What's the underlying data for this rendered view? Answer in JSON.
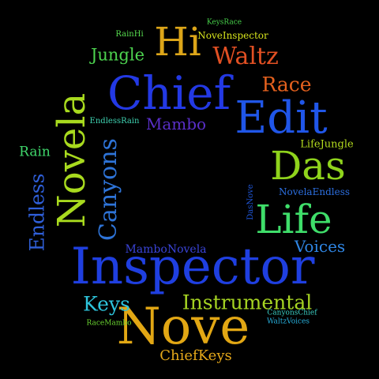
{
  "words": [
    {
      "text": "Inspector",
      "color": "#1f3fe0"
    },
    {
      "text": "Nove",
      "color": "#e2a714"
    },
    {
      "text": "Chief",
      "color": "#2339e4"
    },
    {
      "text": "Edit",
      "color": "#2056e8"
    },
    {
      "text": "Hi",
      "color": "#dca519"
    },
    {
      "text": "Das",
      "color": "#8fd31c"
    },
    {
      "text": "Life",
      "color": "#3fde6a"
    },
    {
      "text": "Novela",
      "color": "#a8da1e"
    },
    {
      "text": "Canyons",
      "color": "#2e74d8"
    },
    {
      "text": "Instrumental",
      "color": "#a6d422"
    },
    {
      "text": "Waltz",
      "color": "#e25023"
    },
    {
      "text": "Race",
      "color": "#e5611e"
    },
    {
      "text": "Endless",
      "color": "#2f5fd9"
    },
    {
      "text": "Keys",
      "color": "#2ec4db"
    },
    {
      "text": "Voices",
      "color": "#2f86e4"
    },
    {
      "text": "Jungle",
      "color": "#4dd34f"
    },
    {
      "text": "Mambo",
      "color": "#5a2fc9"
    },
    {
      "text": "ChiefKeys",
      "color": "#e5a81a"
    },
    {
      "text": "Rain",
      "color": "#3fd66b"
    },
    {
      "text": "MamboNovela",
      "color": "#3a44d8"
    },
    {
      "text": "LifeJungle",
      "color": "#b4dc1e"
    },
    {
      "text": "NovelaEndless",
      "color": "#2c6fe0"
    },
    {
      "text": "NoveInspector",
      "color": "#d5e21c"
    },
    {
      "text": "EndlessRain",
      "color": "#3fd3b2"
    },
    {
      "text": "RainHi",
      "color": "#57dc4f"
    },
    {
      "text": "KeysRace",
      "color": "#47d24a"
    },
    {
      "text": "DasNove",
      "color": "#1f56d8"
    },
    {
      "text": "CanyonsChief",
      "color": "#3bcfc4"
    },
    {
      "text": "WaltzVoices",
      "color": "#28b1de"
    },
    {
      "text": "RaceMambo",
      "color": "#6ad431"
    }
  ]
}
